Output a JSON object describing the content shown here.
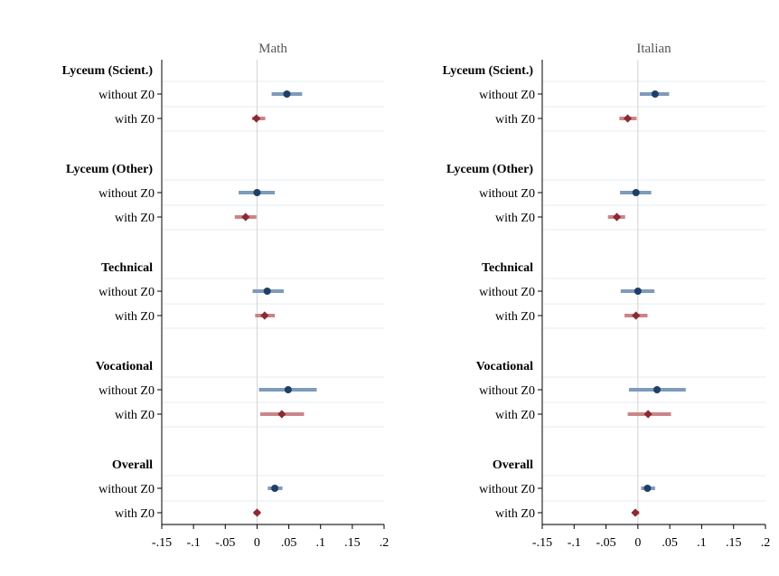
{
  "chart_data": [
    {
      "type": "scatter",
      "title": "Math",
      "xlim": [
        -0.15,
        0.2
      ],
      "xticks": [
        -0.15,
        -0.1,
        -0.05,
        0,
        0.05,
        0.1,
        0.15,
        0.2
      ],
      "xtick_labels": [
        "-.15",
        "-.1",
        "-.05",
        "0",
        ".05",
        ".1",
        ".15",
        ".2"
      ],
      "reference_line": 0,
      "groups": [
        {
          "label": "Lyceum (Scient.)",
          "rows": [
            {
              "label": "without Z0",
              "estimate": 0.047,
              "ci": [
                0.023,
                0.071
              ]
            },
            {
              "label": "with Z0",
              "estimate": -0.001,
              "ci": [
                -0.008,
                0.013
              ]
            }
          ]
        },
        {
          "label": "Lyceum (Other)",
          "rows": [
            {
              "label": "without Z0",
              "estimate": 0.0,
              "ci": [
                -0.029,
                0.028
              ]
            },
            {
              "label": "with Z0",
              "estimate": -0.018,
              "ci": [
                -0.035,
                -0.001
              ]
            }
          ]
        },
        {
          "label": "Technical",
          "rows": [
            {
              "label": "without Z0",
              "estimate": 0.016,
              "ci": [
                -0.007,
                0.042
              ]
            },
            {
              "label": "with Z0",
              "estimate": 0.012,
              "ci": [
                -0.003,
                0.028
              ]
            }
          ]
        },
        {
          "label": "Vocational",
          "rows": [
            {
              "label": "without Z0",
              "estimate": 0.049,
              "ci": [
                0.003,
                0.094
              ]
            },
            {
              "label": "with Z0",
              "estimate": 0.039,
              "ci": [
                0.005,
                0.074
              ]
            }
          ]
        },
        {
          "label": "Overall",
          "rows": [
            {
              "label": "without Z0",
              "estimate": 0.028,
              "ci": [
                0.017,
                0.04
              ]
            },
            {
              "label": "with Z0",
              "estimate": 0.0,
              "ci": [
                -0.005,
                0.005
              ]
            }
          ]
        }
      ]
    },
    {
      "type": "scatter",
      "title": "Italian",
      "xlim": [
        -0.15,
        0.2
      ],
      "xticks": [
        -0.15,
        -0.1,
        -0.05,
        0,
        0.05,
        0.1,
        0.15,
        0.2
      ],
      "xtick_labels": [
        "-.15",
        "-.1",
        "-.05",
        "0",
        ".05",
        ".1",
        ".15",
        ".2"
      ],
      "reference_line": 0,
      "groups": [
        {
          "label": "Lyceum (Scient.)",
          "rows": [
            {
              "label": "without Z0",
              "estimate": 0.027,
              "ci": [
                0.003,
                0.049
              ]
            },
            {
              "label": "with Z0",
              "estimate": -0.016,
              "ci": [
                -0.029,
                -0.002
              ]
            }
          ]
        },
        {
          "label": "Lyceum (Other)",
          "rows": [
            {
              "label": "without Z0",
              "estimate": -0.003,
              "ci": [
                -0.028,
                0.021
              ]
            },
            {
              "label": "with Z0",
              "estimate": -0.033,
              "ci": [
                -0.047,
                -0.02
              ]
            }
          ]
        },
        {
          "label": "Technical",
          "rows": [
            {
              "label": "without Z0",
              "estimate": 0.0,
              "ci": [
                -0.027,
                0.026
              ]
            },
            {
              "label": "with Z0",
              "estimate": -0.003,
              "ci": [
                -0.021,
                0.015
              ]
            }
          ]
        },
        {
          "label": "Vocational",
          "rows": [
            {
              "label": "without Z0",
              "estimate": 0.03,
              "ci": [
                -0.014,
                0.075
              ]
            },
            {
              "label": "with Z0",
              "estimate": 0.016,
              "ci": [
                -0.016,
                0.052
              ]
            }
          ]
        },
        {
          "label": "Overall",
          "rows": [
            {
              "label": "without Z0",
              "estimate": 0.015,
              "ci": [
                0.005,
                0.027
              ]
            },
            {
              "label": "with Z0",
              "estimate": -0.004,
              "ci": [
                -0.008,
                0.002
              ]
            }
          ]
        }
      ]
    }
  ],
  "colors": {
    "without_z0_point": "#1f3f66",
    "without_z0_ci": "#7e9bbb",
    "with_z0_point": "#8b2a33",
    "with_z0_ci": "#cc8488",
    "grid": "#e6edf2",
    "zero_line": "#d2d2d2",
    "axis": "#000000",
    "title": "#555555"
  }
}
